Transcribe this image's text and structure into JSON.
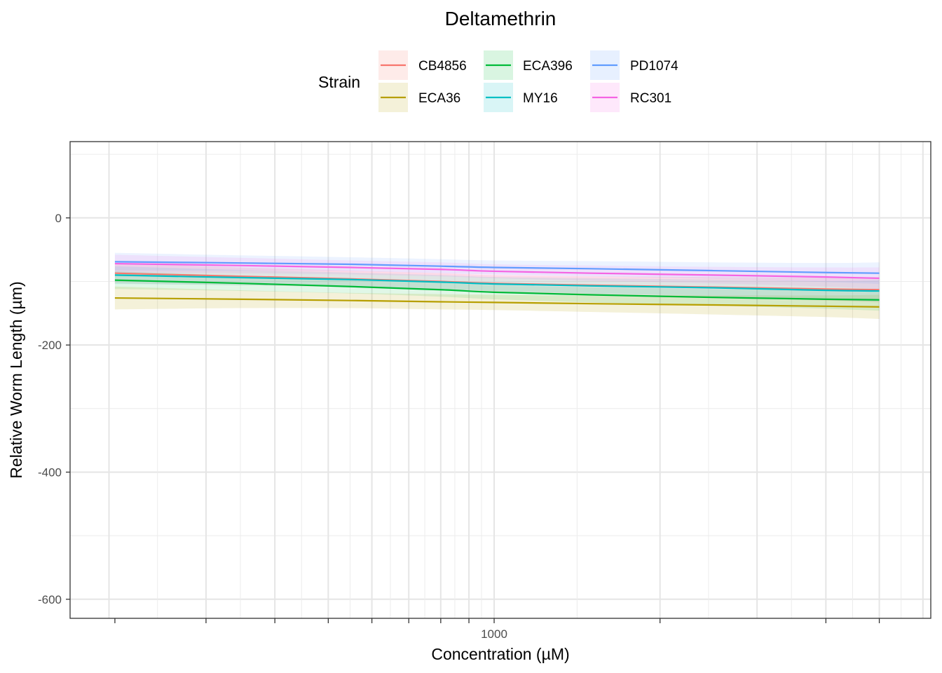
{
  "chart_data": {
    "type": "line",
    "title": "Deltamethrin",
    "xlabel": "Concentration (µM)",
    "ylabel": "Relative Worm Length (µm)",
    "x_scale": "log10",
    "xlim": [
      170,
      6200
    ],
    "ylim": [
      -630,
      120
    ],
    "x_ticks": [
      1000
    ],
    "x_tick_labels": [
      "1000"
    ],
    "y_ticks": [
      0,
      -200,
      -400,
      -600
    ],
    "y_tick_labels": [
      "0",
      "-200",
      "-400",
      "-600"
    ],
    "legend": {
      "title": "Strain",
      "position": "top"
    },
    "x": [
      205,
      350,
      550,
      800,
      1000,
      1500,
      2500,
      4000,
      5000
    ],
    "series": [
      {
        "name": "CB4856",
        "color": "#F8766D",
        "band_alpha": 0.15,
        "values": [
          -87,
          -92,
          -96,
          -100,
          -103,
          -106,
          -109,
          -112,
          -113
        ],
        "band": [
          16,
          14,
          13,
          13,
          13,
          14,
          16,
          18,
          20
        ]
      },
      {
        "name": "ECA36",
        "color": "#B79F00",
        "band_alpha": 0.15,
        "values": [
          -126,
          -128,
          -130,
          -132,
          -133,
          -135,
          -137,
          -139,
          -140
        ],
        "band": [
          18,
          14,
          12,
          12,
          12,
          13,
          15,
          17,
          19
        ]
      },
      {
        "name": "ECA396",
        "color": "#00BA38",
        "band_alpha": 0.12,
        "values": [
          -98,
          -103,
          -108,
          -113,
          -117,
          -121,
          -125,
          -128,
          -129
        ],
        "band": [
          14,
          12,
          11,
          11,
          11,
          12,
          13,
          15,
          17
        ]
      },
      {
        "name": "MY16",
        "color": "#00BFC4",
        "band_alpha": 0.12,
        "values": [
          -90,
          -94,
          -97,
          -101,
          -104,
          -107,
          -110,
          -114,
          -115
        ],
        "band": [
          14,
          12,
          11,
          11,
          11,
          12,
          13,
          15,
          17
        ]
      },
      {
        "name": "PD1074",
        "color": "#619CFF",
        "band_alpha": 0.12,
        "values": [
          -69,
          -71,
          -73,
          -76,
          -78,
          -80,
          -83,
          -86,
          -87
        ],
        "band": [
          14,
          12,
          11,
          11,
          11,
          12,
          13,
          15,
          17
        ]
      },
      {
        "name": "RC301",
        "color": "#F564E3",
        "band_alpha": 0.12,
        "values": [
          -72,
          -75,
          -78,
          -81,
          -84,
          -87,
          -90,
          -93,
          -95
        ],
        "band": [
          14,
          12,
          11,
          11,
          11,
          12,
          13,
          15,
          17
        ]
      }
    ]
  }
}
